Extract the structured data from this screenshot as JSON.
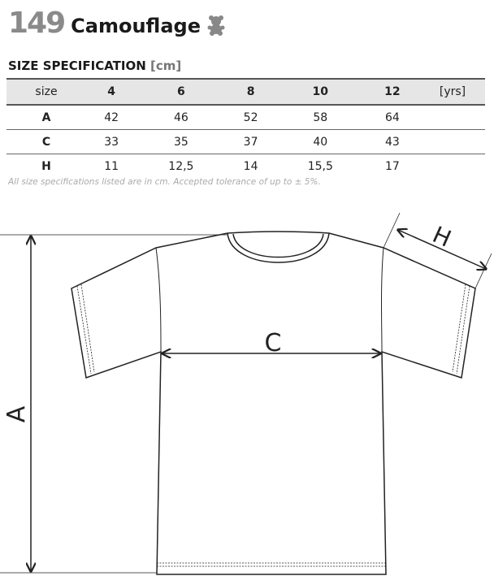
{
  "header": {
    "number": "149",
    "name": "Camouflage",
    "icon": "teddy-bear-icon"
  },
  "spec_title": "SIZE SPECIFICATION",
  "spec_unit": "[cm]",
  "table": {
    "size_label": "size",
    "sizes": [
      "4",
      "6",
      "8",
      "10",
      "12"
    ],
    "size_unit": "[yrs]",
    "rows": [
      {
        "label": "A",
        "values": [
          "42",
          "46",
          "52",
          "58",
          "64"
        ]
      },
      {
        "label": "C",
        "values": [
          "33",
          "35",
          "37",
          "40",
          "43"
        ]
      },
      {
        "label": "H",
        "values": [
          "11",
          "12,5",
          "14",
          "15,5",
          "17"
        ]
      }
    ]
  },
  "note": "All size specifications listed are in cm. Accepted tolerance of up to ± 5%.",
  "diagram": {
    "label_a": "A",
    "label_c": "C",
    "label_h": "H"
  }
}
